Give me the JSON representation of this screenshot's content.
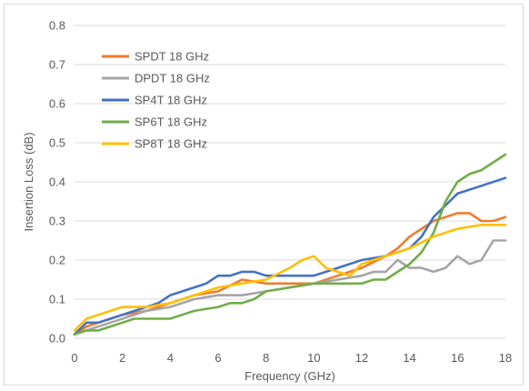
{
  "chart_data": {
    "type": "line",
    "title": "",
    "xlabel": "Frequency (GHz)",
    "ylabel": "Insertion Loss (dB)",
    "xlim": [
      0,
      18
    ],
    "ylim": [
      0,
      0.8
    ],
    "xticks": [
      0,
      2,
      4,
      6,
      8,
      10,
      12,
      14,
      16,
      18
    ],
    "yticks": [
      0.0,
      0.1,
      0.2,
      0.3,
      0.4,
      0.5,
      0.6,
      0.7,
      0.8
    ],
    "ytick_labels": [
      "0.0",
      "0.1",
      "0.2",
      "0.3",
      "0.4",
      "0.5",
      "0.6",
      "0.7",
      "0.8"
    ],
    "grid": "horizontal",
    "legend_position": "top-left",
    "series": [
      {
        "name": "SPDT 18 GHz",
        "color": "#ED7D31",
        "x": [
          0,
          0.5,
          1,
          2,
          3,
          4,
          5,
          6,
          7,
          8,
          9,
          10,
          11,
          12,
          13,
          13.5,
          14,
          14.5,
          15,
          15.5,
          16,
          16.5,
          17,
          17.5,
          18
        ],
        "y": [
          0.01,
          0.03,
          0.04,
          0.06,
          0.07,
          0.09,
          0.11,
          0.12,
          0.15,
          0.14,
          0.14,
          0.14,
          0.16,
          0.18,
          0.21,
          0.23,
          0.26,
          0.28,
          0.3,
          0.31,
          0.32,
          0.32,
          0.3,
          0.3,
          0.31
        ]
      },
      {
        "name": "DPDT 18 GHz",
        "color": "#A5A5A5",
        "x": [
          0,
          0.5,
          1,
          2,
          3,
          4,
          5,
          6,
          7,
          8,
          9,
          10,
          11,
          12,
          12.5,
          13,
          13.5,
          14,
          14.5,
          15,
          15.5,
          16,
          16.5,
          17,
          17.5,
          18
        ],
        "y": [
          0.01,
          0.02,
          0.03,
          0.05,
          0.07,
          0.08,
          0.1,
          0.11,
          0.11,
          0.12,
          0.13,
          0.14,
          0.15,
          0.16,
          0.17,
          0.17,
          0.2,
          0.18,
          0.18,
          0.17,
          0.18,
          0.21,
          0.19,
          0.2,
          0.25,
          0.25
        ]
      },
      {
        "name": "SP4T 18 GHz",
        "color": "#4472C4",
        "x": [
          0,
          0.5,
          1,
          2,
          3,
          3.5,
          4,
          4.5,
          5,
          5.5,
          6,
          6.5,
          7,
          7.5,
          8,
          9,
          10,
          11,
          12,
          13,
          14,
          14.5,
          15,
          15.5,
          16,
          17,
          18
        ],
        "y": [
          0.01,
          0.04,
          0.04,
          0.06,
          0.08,
          0.09,
          0.11,
          0.12,
          0.13,
          0.14,
          0.16,
          0.16,
          0.17,
          0.17,
          0.16,
          0.16,
          0.16,
          0.18,
          0.2,
          0.21,
          0.23,
          0.26,
          0.31,
          0.34,
          0.37,
          0.39,
          0.41
        ]
      },
      {
        "name": "SP6T 18 GHz",
        "color": "#70AD47",
        "x": [
          0,
          0.5,
          1,
          1.5,
          2,
          2.5,
          3,
          4,
          4.5,
          5,
          6,
          6.5,
          7,
          7.5,
          8,
          9,
          10,
          11,
          12,
          12.5,
          13,
          13.5,
          14,
          14.5,
          15,
          15.5,
          16,
          16.5,
          17,
          17.5,
          18
        ],
        "y": [
          0.01,
          0.02,
          0.02,
          0.03,
          0.04,
          0.05,
          0.05,
          0.05,
          0.06,
          0.07,
          0.08,
          0.09,
          0.09,
          0.1,
          0.12,
          0.13,
          0.14,
          0.14,
          0.14,
          0.15,
          0.15,
          0.17,
          0.19,
          0.22,
          0.27,
          0.35,
          0.4,
          0.42,
          0.43,
          0.45,
          0.47
        ]
      },
      {
        "name": "SP8T 18 GHz",
        "color": "#FFC000",
        "x": [
          0,
          0.5,
          1,
          2,
          3,
          4,
          5,
          6,
          7,
          8,
          9,
          9.5,
          10,
          10.5,
          11,
          11.5,
          12,
          13,
          14,
          15,
          16,
          17,
          18
        ],
        "y": [
          0.02,
          0.05,
          0.06,
          0.08,
          0.08,
          0.09,
          0.11,
          0.13,
          0.14,
          0.15,
          0.18,
          0.2,
          0.21,
          0.18,
          0.17,
          0.16,
          0.19,
          0.21,
          0.23,
          0.26,
          0.28,
          0.29,
          0.29
        ]
      }
    ]
  }
}
